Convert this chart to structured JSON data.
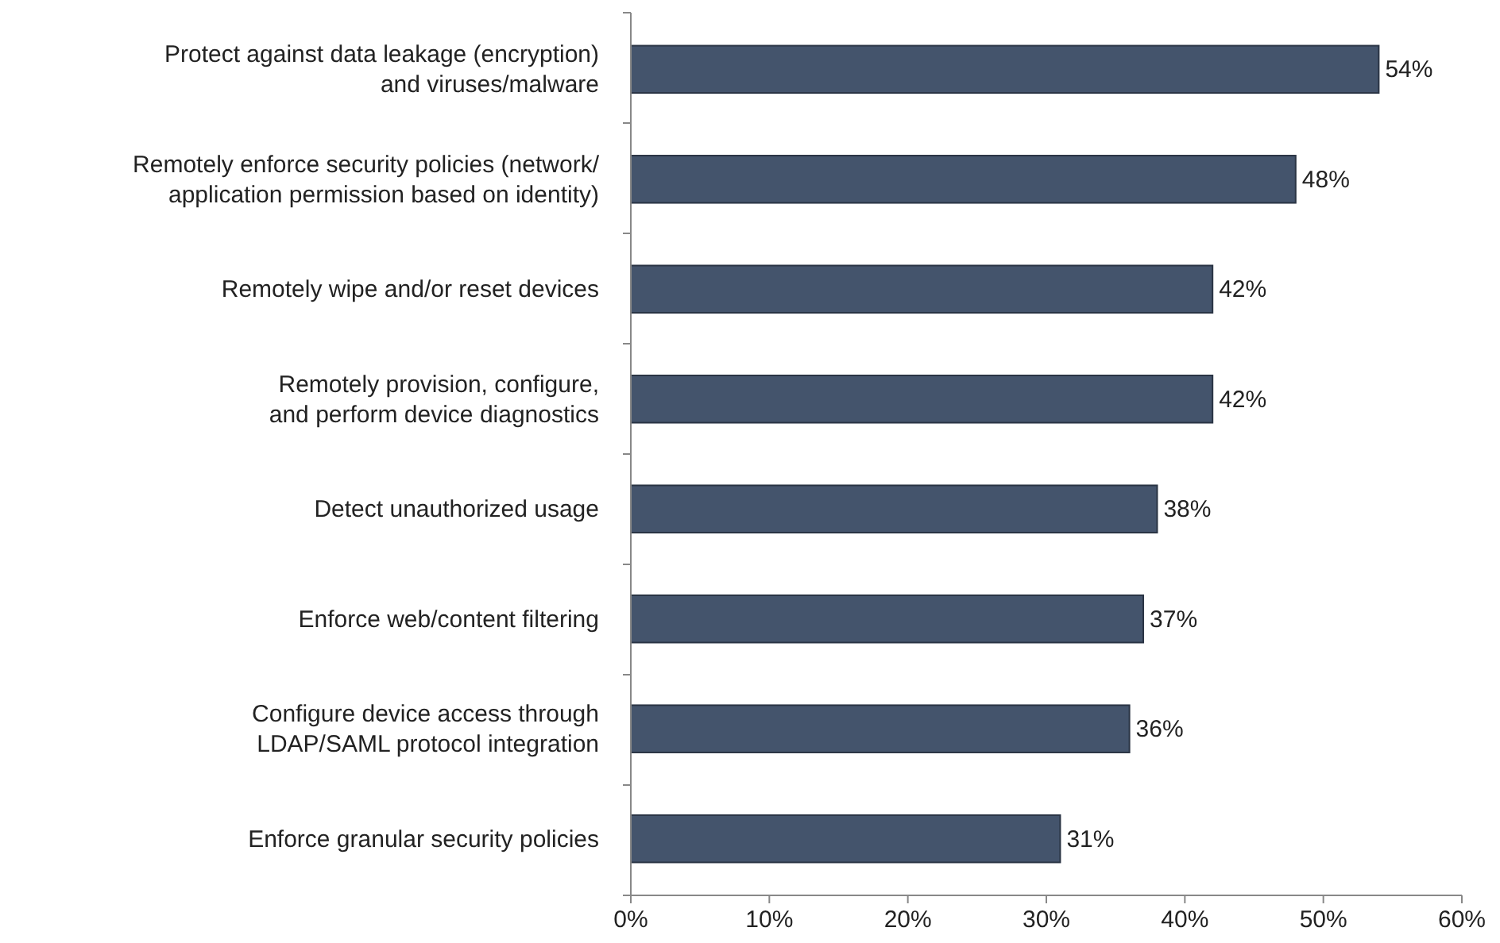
{
  "chart_data": {
    "type": "bar",
    "orientation": "horizontal",
    "categories": [
      "Protect against data leakage (encryption)\nand viruses/malware",
      "Remotely enforce security policies (network/\napplication permission based on identity)",
      "Remotely wipe and/or reset devices",
      "Remotely provision, configure,\nand perform device diagnostics",
      "Detect unauthorized usage",
      "Enforce web/content filtering",
      "Configure device access through\nLDAP/SAML protocol integration",
      "Enforce granular security policies"
    ],
    "values": [
      54,
      48,
      42,
      42,
      38,
      37,
      36,
      31
    ],
    "value_labels": [
      "54%",
      "48%",
      "42%",
      "42%",
      "38%",
      "37%",
      "36%",
      "31%"
    ],
    "color": "#44546c",
    "xlim": [
      0,
      60
    ],
    "xticks": [
      {
        "value": 0,
        "label": "0%"
      },
      {
        "value": 10,
        "label": "10%"
      },
      {
        "value": 20,
        "label": "20%"
      },
      {
        "value": 30,
        "label": "30%"
      },
      {
        "value": 40,
        "label": "40%"
      },
      {
        "value": 50,
        "label": "50%"
      },
      {
        "value": 60,
        "label": "60%"
      }
    ],
    "grid": false
  }
}
